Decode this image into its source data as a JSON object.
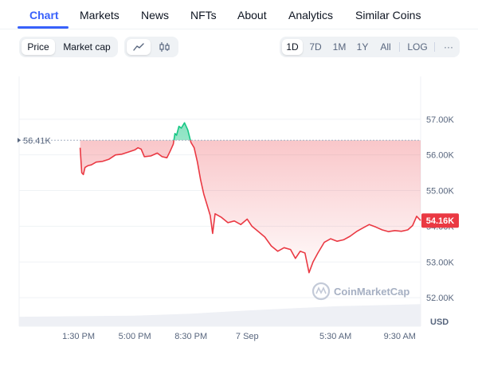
{
  "tabs": [
    {
      "label": "Chart",
      "active": true
    },
    {
      "label": "Markets"
    },
    {
      "label": "News"
    },
    {
      "label": "NFTs"
    },
    {
      "label": "About"
    },
    {
      "label": "Analytics"
    },
    {
      "label": "Similar Coins"
    }
  ],
  "toolbar": {
    "metric_options": [
      {
        "label": "Price",
        "active": true
      },
      {
        "label": "Market cap"
      }
    ],
    "chart_type_icons": [
      {
        "icon": "line-chart-icon",
        "active": true
      },
      {
        "icon": "candlestick-icon"
      }
    ],
    "ranges": [
      {
        "label": "1D",
        "active": true
      },
      {
        "label": "7D"
      },
      {
        "label": "1M"
      },
      {
        "label": "1Y"
      },
      {
        "label": "All"
      }
    ],
    "log_label": "LOG",
    "more_label": "···"
  },
  "colors": {
    "accent": "#3861fb",
    "down": "#ea3943",
    "up": "#16c784"
  },
  "chart_data": {
    "type": "line",
    "currency": "USD",
    "open_reference": {
      "label": "56.41K",
      "value": 56.41
    },
    "current_price": {
      "label": "54.16K",
      "value": 54.16
    },
    "y_ticks": [
      "57.00K",
      "56.00K",
      "55.00K",
      "54.00K",
      "53.00K",
      "52.00K"
    ],
    "y_values": [
      57,
      56,
      55,
      54,
      53,
      52
    ],
    "ylim": [
      51.2,
      58.2
    ],
    "x_ticks": [
      "1:30 PM",
      "5:00 PM",
      "8:30 PM",
      "7 Sep",
      "5:30 AM",
      "9:30 AM"
    ],
    "x_tick_hours": [
      13.5,
      17,
      20.5,
      24,
      29.5,
      33.5
    ],
    "xlim": [
      9.8,
      34.8
    ],
    "x_units": "hours from start of 6 Sep",
    "series": [
      {
        "points": [
          [
            13.6,
            56.2
          ],
          [
            13.7,
            55.5
          ],
          [
            13.8,
            55.45
          ],
          [
            13.9,
            55.65
          ],
          [
            14.1,
            55.7
          ],
          [
            14.3,
            55.72
          ],
          [
            14.6,
            55.8
          ],
          [
            15.0,
            55.82
          ],
          [
            15.4,
            55.88
          ],
          [
            15.8,
            56.0
          ],
          [
            16.2,
            56.02
          ],
          [
            16.6,
            56.08
          ],
          [
            17.0,
            56.14
          ],
          [
            17.2,
            56.2
          ],
          [
            17.4,
            56.16
          ],
          [
            17.6,
            55.95
          ],
          [
            18.0,
            55.97
          ],
          [
            18.4,
            56.05
          ],
          [
            18.7,
            55.95
          ],
          [
            19.0,
            55.92
          ],
          [
            19.2,
            56.1
          ],
          [
            19.4,
            56.3
          ],
          [
            19.5,
            56.6
          ],
          [
            19.6,
            56.55
          ],
          [
            19.75,
            56.8
          ],
          [
            19.9,
            56.75
          ],
          [
            20.1,
            56.9
          ],
          [
            20.3,
            56.7
          ],
          [
            20.5,
            56.35
          ],
          [
            20.7,
            56.2
          ],
          [
            20.9,
            55.8
          ],
          [
            21.1,
            55.3
          ],
          [
            21.3,
            54.9
          ],
          [
            21.5,
            54.6
          ],
          [
            21.7,
            54.3
          ],
          [
            21.85,
            53.8
          ],
          [
            22.0,
            54.35
          ],
          [
            22.4,
            54.25
          ],
          [
            22.8,
            54.1
          ],
          [
            23.2,
            54.15
          ],
          [
            23.6,
            54.05
          ],
          [
            24.0,
            54.2
          ],
          [
            24.3,
            54.0
          ],
          [
            24.7,
            53.85
          ],
          [
            25.1,
            53.7
          ],
          [
            25.5,
            53.45
          ],
          [
            25.9,
            53.3
          ],
          [
            26.3,
            53.4
          ],
          [
            26.7,
            53.35
          ],
          [
            27.0,
            53.1
          ],
          [
            27.3,
            53.3
          ],
          [
            27.6,
            53.25
          ],
          [
            27.85,
            52.7
          ],
          [
            28.1,
            53.0
          ],
          [
            28.4,
            53.25
          ],
          [
            28.8,
            53.55
          ],
          [
            29.2,
            53.65
          ],
          [
            29.6,
            53.58
          ],
          [
            30.0,
            53.62
          ],
          [
            30.4,
            53.72
          ],
          [
            30.8,
            53.85
          ],
          [
            31.2,
            53.95
          ],
          [
            31.6,
            54.05
          ],
          [
            32.0,
            53.98
          ],
          [
            32.4,
            53.9
          ],
          [
            32.8,
            53.85
          ],
          [
            33.2,
            53.88
          ],
          [
            33.6,
            53.86
          ],
          [
            34.0,
            53.9
          ],
          [
            34.3,
            54.02
          ],
          [
            34.55,
            54.28
          ],
          [
            34.8,
            54.16
          ]
        ]
      }
    ],
    "volume": [
      [
        13.0,
        0.18
      ],
      [
        17.0,
        0.2
      ],
      [
        20.5,
        0.24
      ],
      [
        24.0,
        0.3
      ],
      [
        29.5,
        0.38
      ],
      [
        34.8,
        0.42
      ]
    ],
    "watermark": "CoinMarketCap"
  }
}
